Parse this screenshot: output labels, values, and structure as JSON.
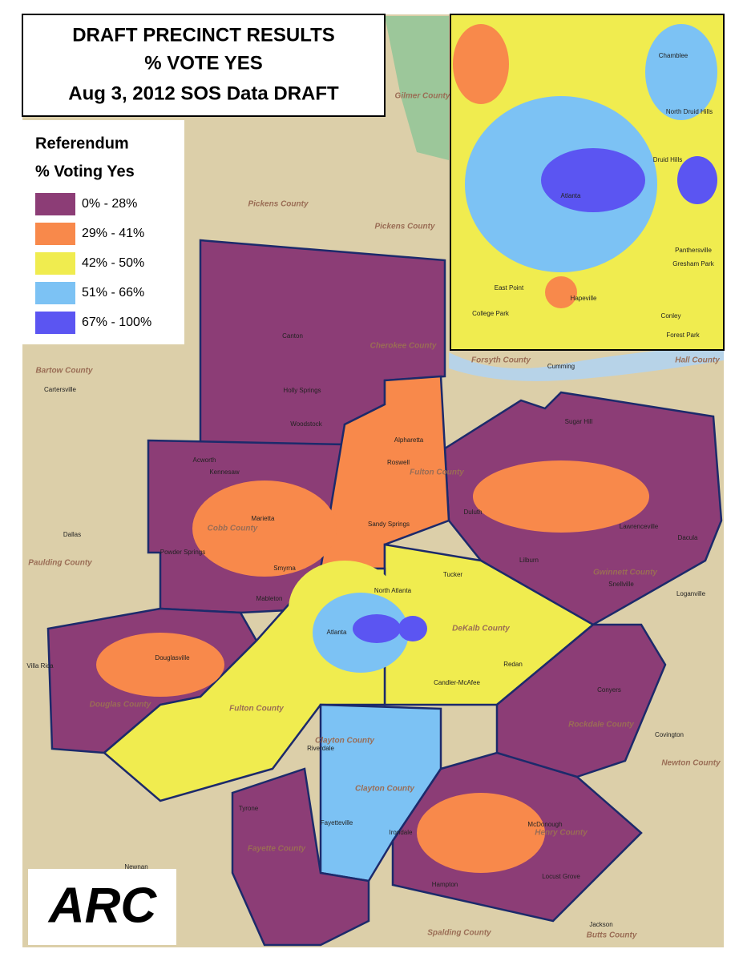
{
  "title": {
    "lines": [
      "DRAFT PRECINCT RESULTS",
      "% VOTE YES",
      "Aug 3, 2012 SOS Data DRAFT"
    ]
  },
  "legend": {
    "title": "Referendum",
    "subtitle": "% Voting Yes",
    "items": [
      {
        "label": "0% - 28%",
        "color": "#8c3d76"
      },
      {
        "label": "29% - 41%",
        "color": "#f8894b"
      },
      {
        "label": "42% - 50%",
        "color": "#f0ec4f"
      },
      {
        "label": "51% - 66%",
        "color": "#7cc2f4"
      },
      {
        "label": "67% - 100%",
        "color": "#5b55f2"
      }
    ]
  },
  "logo": "ARC",
  "counties": [
    "Gilmer County",
    "Pickens County",
    "Pickens County",
    "Cherokee County",
    "Bartow County",
    "Paulding County",
    "Cobb County",
    "Forsyth County",
    "Hall County",
    "Fulton County",
    "Gwinnett County",
    "DeKalb County",
    "Douglas County",
    "Fulton County",
    "Clayton County",
    "Clayton County",
    "Rockdale County",
    "Newton County",
    "Fayette County",
    "Henry County",
    "Spalding County",
    "Butts County"
  ],
  "cities": [
    "Canton",
    "Holly Springs",
    "Woodstock",
    "Cartersville",
    "Acworth",
    "Kennesaw",
    "Marietta",
    "Dallas",
    "Powder Springs",
    "Smyrna",
    "Mableton",
    "Alpharetta",
    "Roswell",
    "Sandy Springs",
    "Duluth",
    "Sugar Hill",
    "Dacula",
    "Lawrenceville",
    "Lilburn",
    "Snellville",
    "Loganville",
    "Tucker",
    "North Atlanta",
    "Atlanta",
    "Redan",
    "Candler-McAfee",
    "Douglasville",
    "Villa Rica",
    "Riverdale",
    "Conyers",
    "Covington",
    "Tyrone",
    "Fayetteville",
    "Irondale",
    "McDonough",
    "Hampton",
    "Locust Grove",
    "Newnan",
    "Jackson",
    "Cumming"
  ],
  "inset_cities": [
    "Chamblee",
    "North Druid Hills",
    "Druid Hills",
    "Atlanta",
    "Gresham Park",
    "Panthersville",
    "East Point",
    "Hapeville",
    "College Park",
    "Conley",
    "Forest Park"
  ]
}
